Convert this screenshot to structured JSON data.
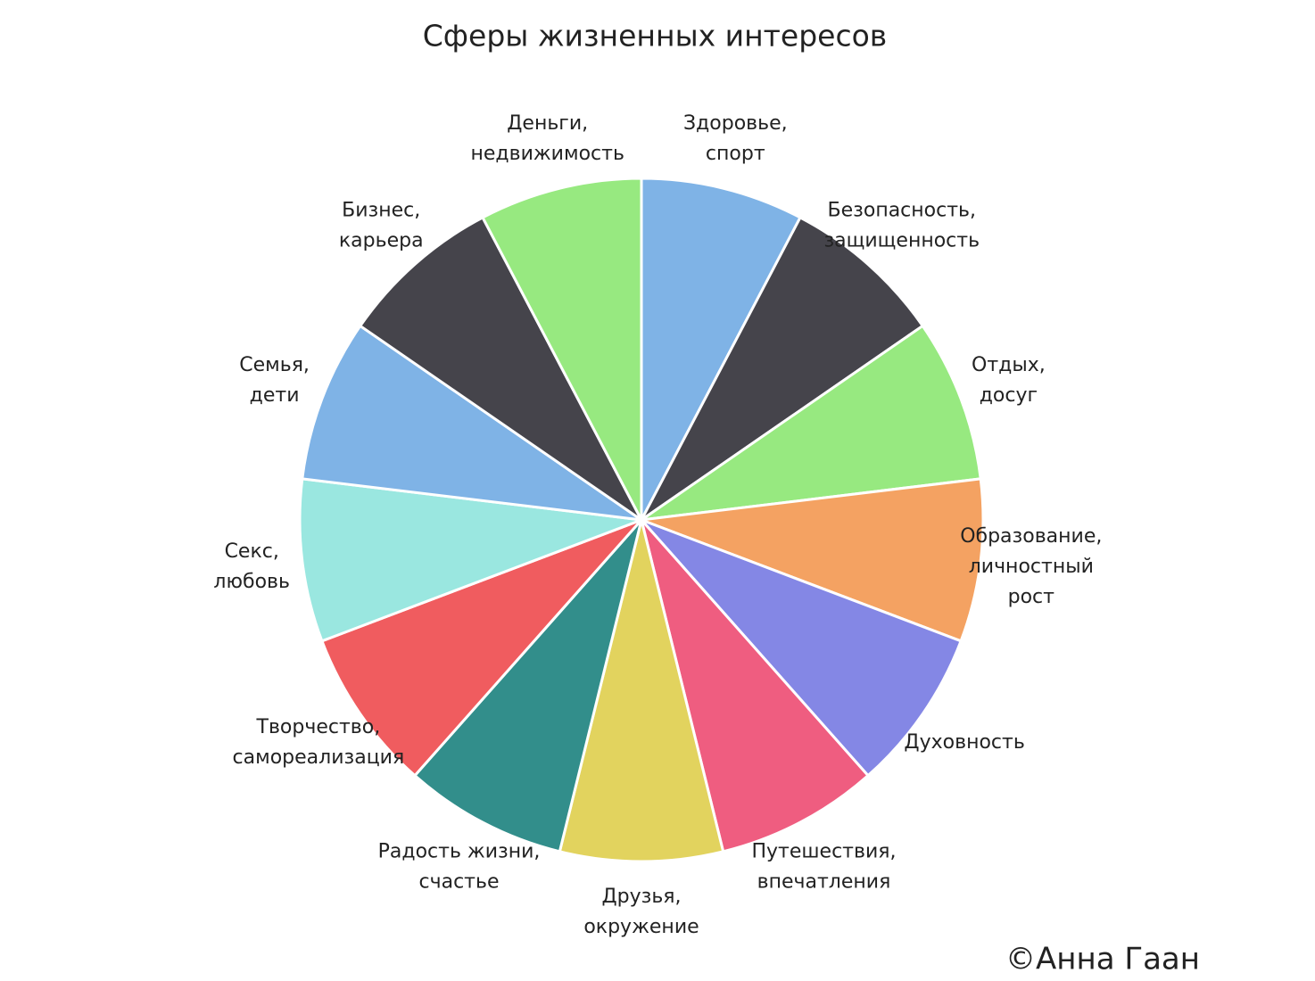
{
  "chart_data": {
    "type": "pie",
    "title": "Сферы жизненных интересов",
    "categories": [
      "Здоровье,\nспорт",
      "Безопасность,\nзащищенность",
      "Отдых,\nдосуг",
      "Образование,\nличностный\nрост",
      "Духовность",
      "Путешествия,\nвпечатления",
      "Друзья,\nокружение",
      "Радость жизни,\nсчастье",
      "Творчество,\nсамореализация",
      "Секс,\nлюбовь",
      "Семья,\nдети",
      "Бизнес,\nкарьера",
      "Деньги,\nнедвижимость"
    ],
    "values": [
      1,
      1,
      1,
      1,
      1,
      1,
      1,
      1,
      1,
      1,
      1,
      1,
      1
    ],
    "colors": [
      "#7fb3e6",
      "#45444b",
      "#97e980",
      "#f4a262",
      "#8487e5",
      "#ef5d80",
      "#e2d35e",
      "#328e8b",
      "#f05c5f",
      "#9ae7e0",
      "#7fb3e6",
      "#45444b",
      "#97e980"
    ],
    "credit": "©Анна Гаан"
  }
}
